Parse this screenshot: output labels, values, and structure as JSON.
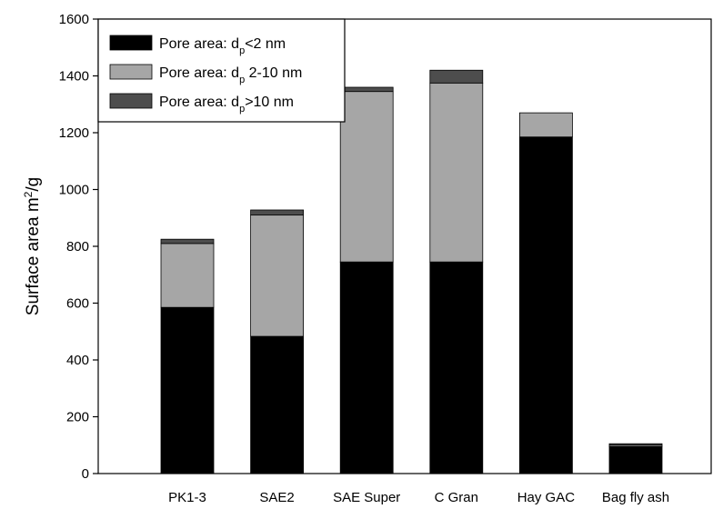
{
  "chart_data": {
    "type": "bar",
    "stacked": true,
    "categories": [
      "PK1-3",
      "SAE2",
      "SAE Super",
      "C Gran",
      "Hay  GAC",
      "Bag fly ash"
    ],
    "series": [
      {
        "name": "Pore area: d<2 nm",
        "legend_prefix": "Pore area: d",
        "legend_sub": "p",
        "legend_suffix": "<2 nm",
        "color": "#000000",
        "values": [
          585,
          483,
          745,
          745,
          1185,
          95
        ]
      },
      {
        "name": "Pore area: d 2-10 nm",
        "legend_prefix": "Pore area: d",
        "legend_sub": "p",
        "legend_suffix": " 2-10 nm",
        "color": "#a6a6a6",
        "values": [
          225,
          427,
          600,
          630,
          85,
          5
        ]
      },
      {
        "name": "Pore area: d>10 nm",
        "legend_prefix": "Pore area: d",
        "legend_sub": "p",
        "legend_suffix": ">10 nm",
        "color": "#4d4d4d",
        "values": [
          15,
          18,
          15,
          45,
          0,
          5
        ]
      }
    ],
    "ylabel_prefix": "Surface area m",
    "ylabel_sup": "2",
    "ylabel_suffix": "/g",
    "xlabel": "",
    "title": "",
    "ylim": [
      0,
      1600
    ],
    "yticks": [
      0,
      200,
      400,
      600,
      800,
      1000,
      1200,
      1400,
      1600
    ],
    "grid": false,
    "legend_position": "top-left"
  }
}
